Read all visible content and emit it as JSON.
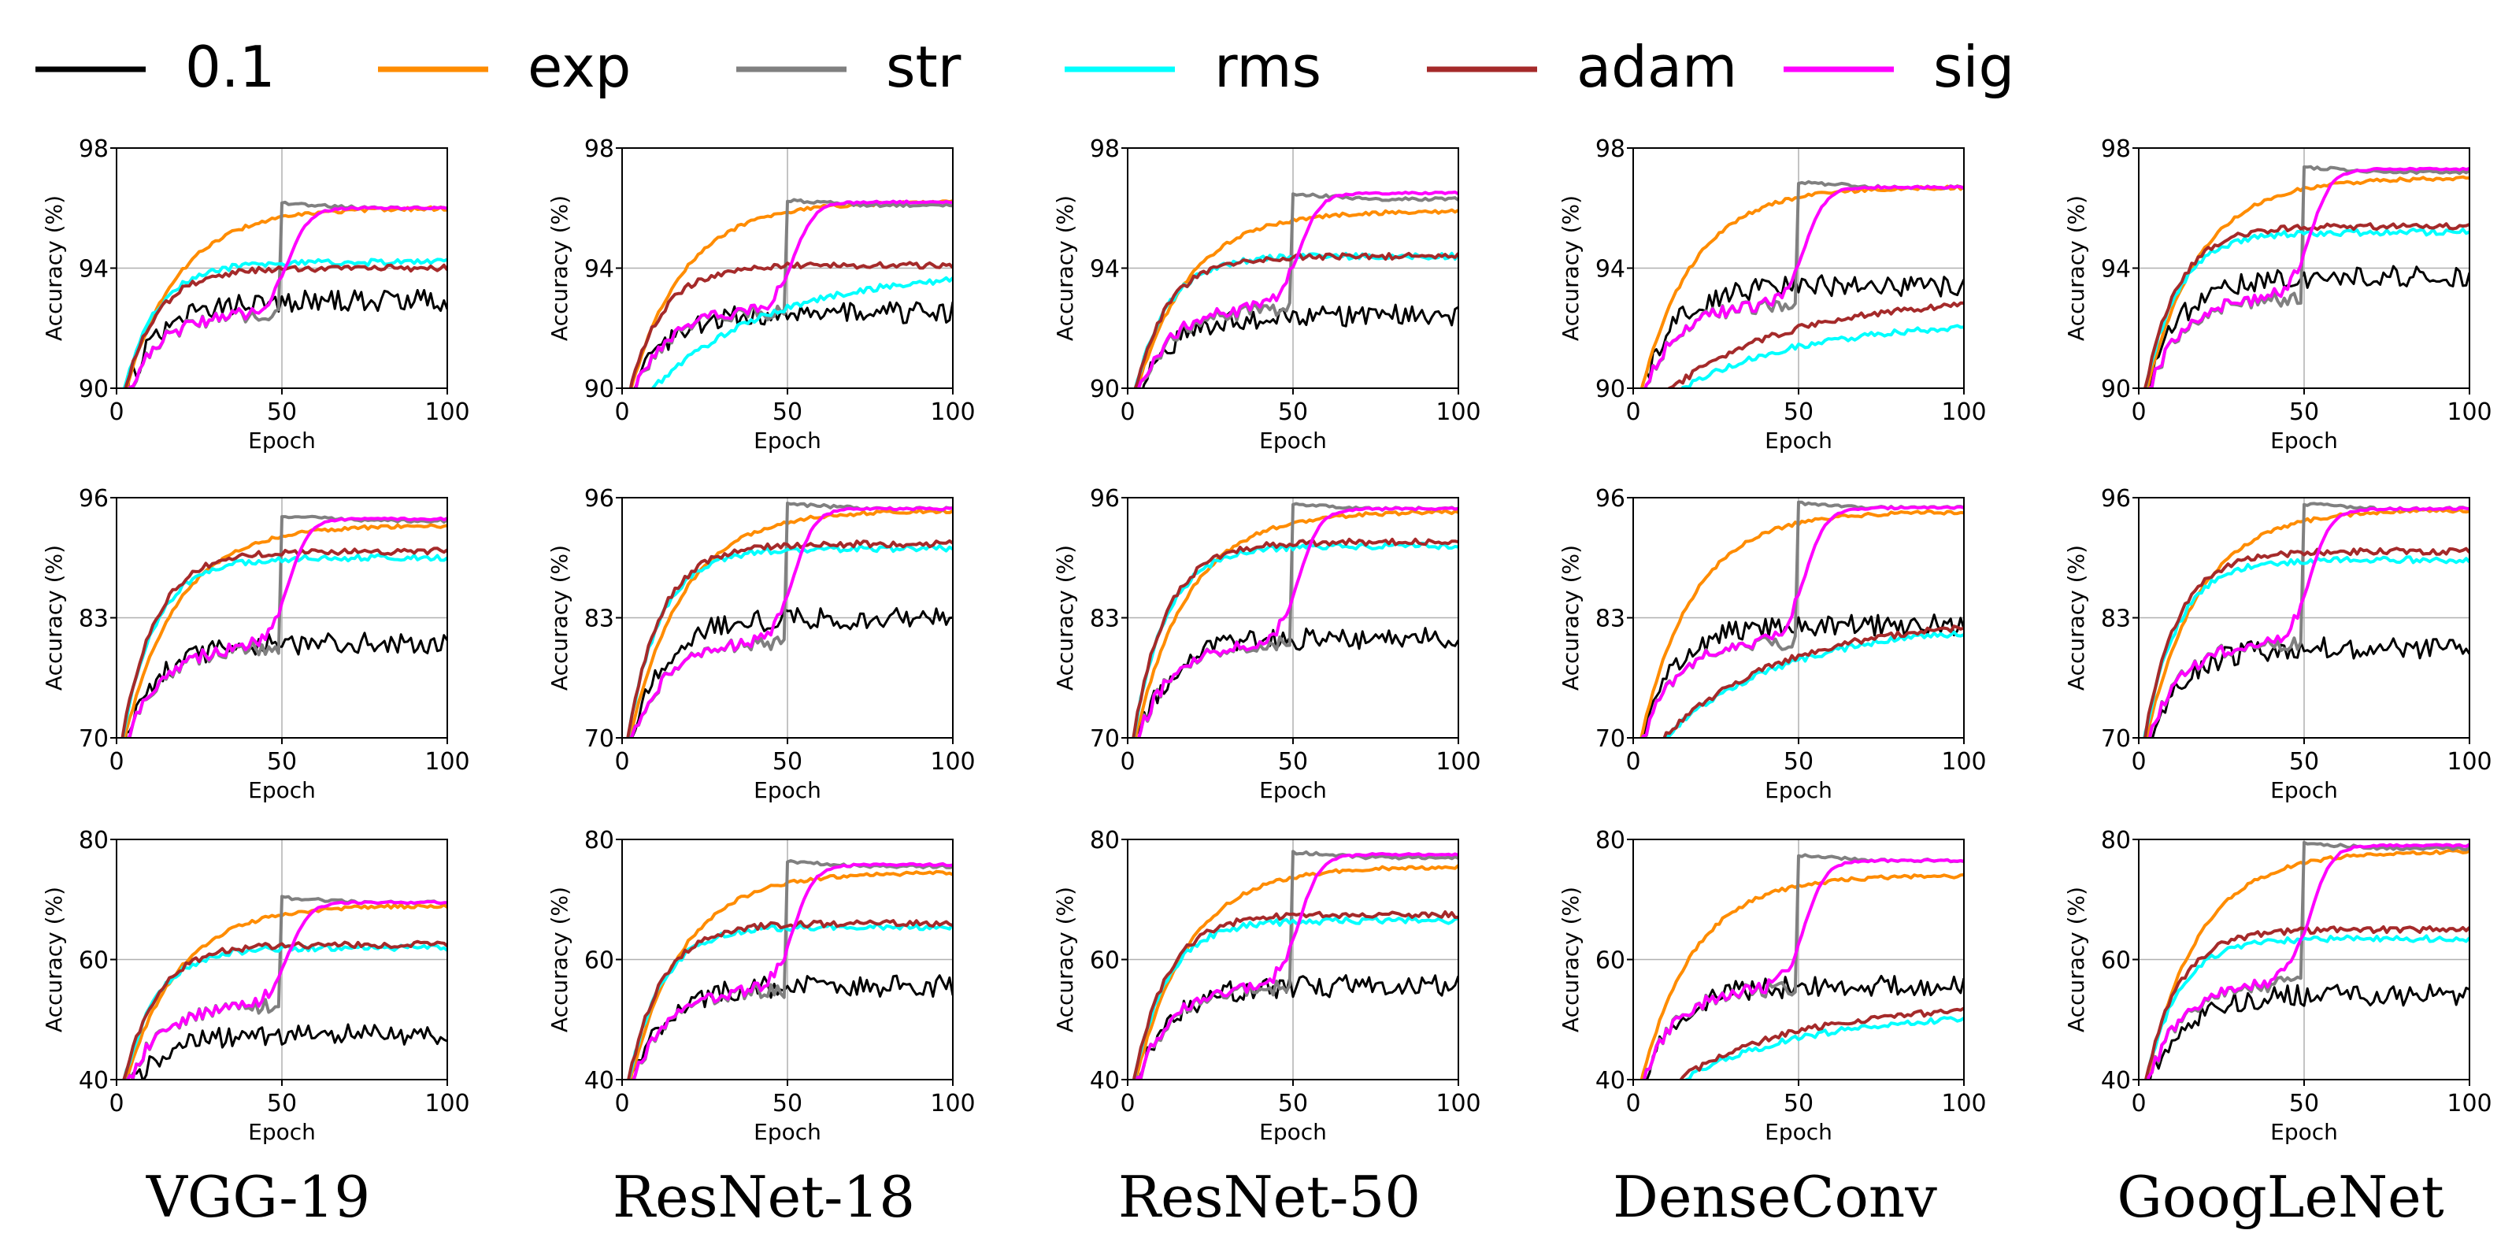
{
  "legend": [
    {
      "key": "0.1",
      "label": "0.1",
      "color": "#000000"
    },
    {
      "key": "exp",
      "label": "exp",
      "color": "#ff8c00"
    },
    {
      "key": "str",
      "label": "str",
      "color": "#808080"
    },
    {
      "key": "rms",
      "label": "rms",
      "color": "#00ffff"
    },
    {
      "key": "adam",
      "label": "adam",
      "color": "#a52a2a"
    },
    {
      "key": "sig",
      "label": "sig",
      "color": "#ff00ff"
    }
  ],
  "models": [
    "VGG-19",
    "ResNet-18",
    "ResNet-50",
    "DenseConv",
    "GoogLeNet"
  ],
  "chart_data": {
    "type": "line",
    "xlabel": "Epoch",
    "ylabel": "Accuracy (%)",
    "xlim": [
      0,
      100
    ],
    "xticks": [
      0,
      50,
      100
    ],
    "rows": [
      {
        "ylim": [
          90,
          98
        ],
        "yticks": [
          90,
          94,
          98
        ],
        "panels": [
          {
            "model": "VGG-19",
            "final": {
              "0.1": 93.0,
              "exp": 96.0,
              "str": 96.0,
              "rms": 94.2,
              "adam": 94.0,
              "sig": 96.0
            }
          },
          {
            "model": "ResNet-18",
            "final": {
              "0.1": 92.6,
              "exp": 96.2,
              "str": 96.1,
              "rms": 93.9,
              "adam": 94.1,
              "sig": 96.2
            }
          },
          {
            "model": "ResNet-50",
            "final": {
              "0.1": 92.5,
              "exp": 95.9,
              "str": 96.3,
              "rms": 94.4,
              "adam": 94.4,
              "sig": 96.5
            }
          },
          {
            "model": "DenseConv",
            "final": {
              "0.1": 93.5,
              "exp": 96.7,
              "str": 96.7,
              "rms": 92.2,
              "adam": 93.0,
              "sig": 96.7
            }
          },
          {
            "model": "GoogLeNet",
            "final": {
              "0.1": 93.8,
              "exp": 97.0,
              "str": 97.2,
              "rms": 95.2,
              "adam": 95.4,
              "sig": 97.3
            }
          }
        ]
      },
      {
        "ylim": [
          70,
          96
        ],
        "yticks": [
          70,
          83,
          96
        ],
        "panels": [
          {
            "model": "VGG-19",
            "final": {
              "0.1": 80.5,
              "exp": 93.0,
              "str": 93.5,
              "rms": 89.5,
              "adam": 90.2,
              "sig": 93.7
            }
          },
          {
            "model": "ResNet-18",
            "final": {
              "0.1": 83.2,
              "exp": 94.6,
              "str": 94.8,
              "rms": 90.5,
              "adam": 91.0,
              "sig": 94.8
            }
          },
          {
            "model": "ResNet-50",
            "final": {
              "0.1": 81.0,
              "exp": 94.5,
              "str": 94.8,
              "rms": 90.8,
              "adam": 91.2,
              "sig": 94.8
            }
          },
          {
            "model": "DenseConv",
            "final": {
              "0.1": 82.5,
              "exp": 94.5,
              "str": 94.9,
              "rms": 82.3,
              "adam": 82.9,
              "sig": 94.9
            }
          },
          {
            "model": "GoogLeNet",
            "final": {
              "0.1": 80.0,
              "exp": 94.7,
              "str": 94.8,
              "rms": 89.3,
              "adam": 90.2,
              "sig": 94.8
            }
          }
        ]
      },
      {
        "ylim": [
          40,
          80
        ],
        "yticks": [
          40,
          60,
          80
        ],
        "panels": [
          {
            "model": "VGG-19",
            "final": {
              "0.1": 48.0,
              "exp": 69.0,
              "str": 69.5,
              "rms": 62.0,
              "adam": 62.5,
              "sig": 69.5
            }
          },
          {
            "model": "ResNet-18",
            "final": {
              "0.1": 56.0,
              "exp": 74.5,
              "str": 75.5,
              "rms": 65.5,
              "adam": 66.0,
              "sig": 75.8
            }
          },
          {
            "model": "ResNet-50",
            "final": {
              "0.1": 56.0,
              "exp": 75.5,
              "str": 77.0,
              "rms": 66.5,
              "adam": 67.5,
              "sig": 77.5
            }
          },
          {
            "model": "DenseConv",
            "final": {
              "0.1": 56.0,
              "exp": 74.0,
              "str": 76.5,
              "rms": 51.0,
              "adam": 52.5,
              "sig": 76.5
            }
          },
          {
            "model": "GoogLeNet",
            "final": {
              "0.1": 54.5,
              "exp": 78.0,
              "str": 78.5,
              "rms": 63.5,
              "adam": 65.0,
              "sig": 79.0
            }
          }
        ]
      }
    ]
  }
}
